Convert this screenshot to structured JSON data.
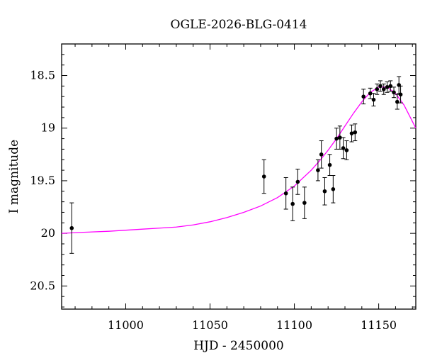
{
  "chart_data": {
    "type": "scatter",
    "title": "OGLE-2026-BLG-0414",
    "xlabel": "HJD - 2450000",
    "ylabel": "I magnitude",
    "xlim": [
      10962,
      11172
    ],
    "ylim": [
      20.72,
      18.2
    ],
    "y_inverted": true,
    "grid": false,
    "x_ticks": [
      11000,
      11050,
      11100,
      11150
    ],
    "x_tick_labels": [
      "11000",
      "11050",
      "11100",
      "11150"
    ],
    "y_ticks": [
      18.5,
      19,
      19.5,
      20,
      20.5
    ],
    "y_tick_labels": [
      "18.5",
      "19",
      "19.5",
      "20",
      "20.5"
    ],
    "series": [
      {
        "kind": "points-with-error-bars",
        "color": "#000000",
        "x": [
          10968,
          11082,
          11095,
          11099,
          11102,
          11106,
          11114,
          11116,
          11118,
          11121,
          11123,
          11125,
          11127,
          11129,
          11131,
          11134,
          11136,
          11141,
          11145,
          11147,
          11149,
          11151,
          11153,
          11155,
          11157,
          11159,
          11161,
          11162,
          11163
        ],
        "y": [
          19.95,
          19.46,
          19.62,
          19.72,
          19.51,
          19.71,
          19.4,
          19.25,
          19.6,
          19.35,
          19.58,
          19.1,
          19.09,
          19.19,
          19.21,
          19.05,
          19.04,
          18.7,
          18.67,
          18.73,
          18.63,
          18.6,
          18.63,
          18.61,
          18.6,
          18.66,
          18.75,
          18.59,
          18.68
        ],
        "yerr": [
          0.24,
          0.16,
          0.15,
          0.16,
          0.12,
          0.15,
          0.1,
          0.13,
          0.13,
          0.1,
          0.13,
          0.1,
          0.11,
          0.1,
          0.09,
          0.08,
          0.08,
          0.07,
          0.05,
          0.06,
          0.05,
          0.05,
          0.05,
          0.05,
          0.05,
          0.05,
          0.07,
          0.08,
          0.08
        ]
      },
      {
        "kind": "model-curve",
        "color": "#ff00ff",
        "x": [
          10962,
          10975,
          10990,
          11000,
          11010,
          11020,
          11030,
          11040,
          11050,
          11060,
          11070,
          11080,
          11090,
          11100,
          11110,
          11115,
          11120,
          11125,
          11130,
          11135,
          11140,
          11145,
          11150,
          11155,
          11160,
          11165,
          11172
        ],
        "y": [
          20.0,
          19.99,
          19.98,
          19.97,
          19.96,
          19.95,
          19.94,
          19.92,
          19.89,
          19.85,
          19.8,
          19.74,
          19.66,
          19.55,
          19.4,
          19.31,
          19.21,
          19.1,
          18.98,
          18.86,
          18.75,
          18.66,
          18.61,
          18.61,
          18.67,
          18.78,
          19.0
        ]
      }
    ]
  }
}
